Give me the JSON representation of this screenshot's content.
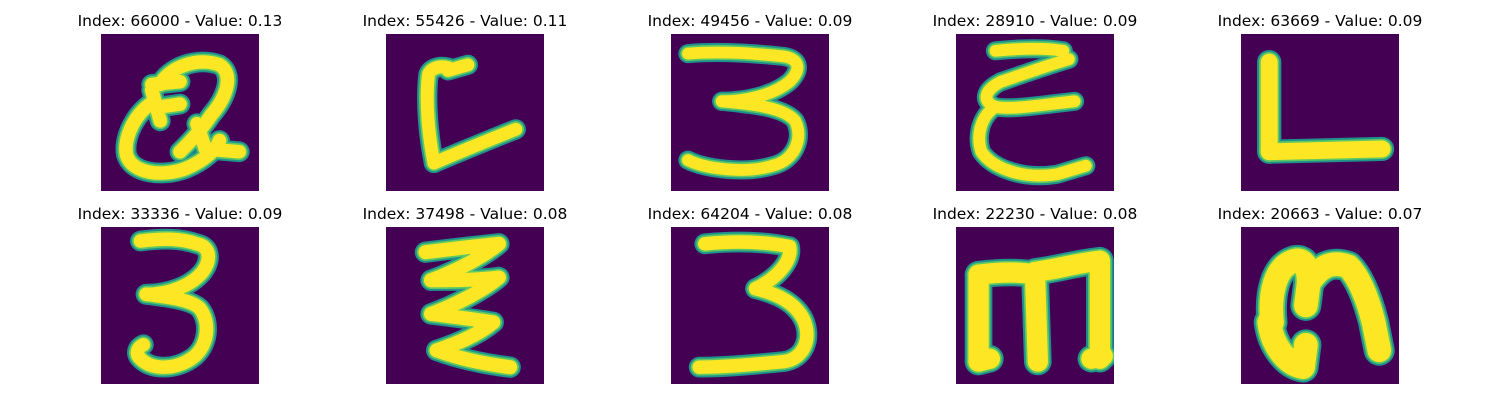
{
  "colors": {
    "background": "#440154",
    "edge": "#21918c",
    "mid": "#5ec962",
    "stroke": "#fde725"
  },
  "figure": {
    "panels": [
      {
        "index_label": "Index: 66000",
        "value_label": "Value: 0.13",
        "glyph": "Q"
      },
      {
        "index_label": "Index: 55426",
        "value_label": "Value: 0.11",
        "glyph": "L-slanted"
      },
      {
        "index_label": "Index: 49456",
        "value_label": "Value: 0.09",
        "glyph": "3"
      },
      {
        "index_label": "Index: 28910",
        "value_label": "Value: 0.09",
        "glyph": "E-script"
      },
      {
        "index_label": "Index: 63669",
        "value_label": "Value: 0.09",
        "glyph": "L"
      },
      {
        "index_label": "Index: 33336",
        "value_label": "Value: 0.09",
        "glyph": "3"
      },
      {
        "index_label": "Index: 37498",
        "value_label": "Value: 0.08",
        "glyph": "zigzag"
      },
      {
        "index_label": "Index: 64204",
        "value_label": "Value: 0.08",
        "glyph": "3"
      },
      {
        "index_label": "Index: 22230",
        "value_label": "Value: 0.08",
        "glyph": "m"
      },
      {
        "index_label": "Index: 20663",
        "value_label": "Value: 0.07",
        "glyph": "n"
      }
    ]
  }
}
